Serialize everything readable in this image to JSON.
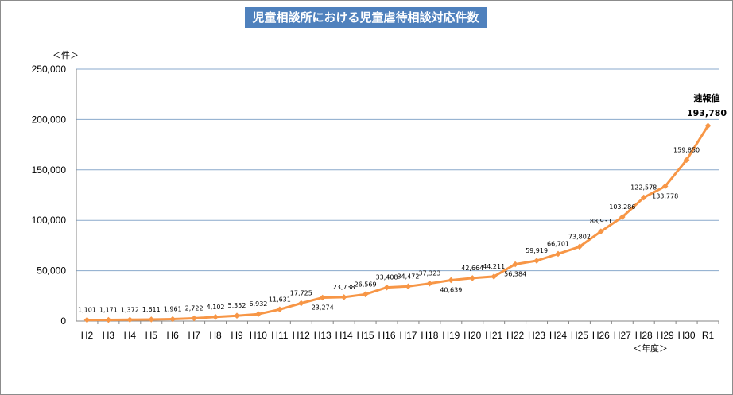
{
  "chart_data": {
    "type": "line",
    "title": "児童相談所における児童虐待相談対応件数",
    "ylabel": "＜件＞",
    "xlabel": "＜年度＞",
    "ylim": [
      0,
      250000
    ],
    "yticks": [
      0,
      50000,
      100000,
      150000,
      200000,
      250000
    ],
    "ytick_labels": [
      "0",
      "50,000",
      "100,000",
      "150,000",
      "200,000",
      "250,000"
    ],
    "categories": [
      "H2",
      "H3",
      "H4",
      "H5",
      "H6",
      "H7",
      "H8",
      "H9",
      "H10",
      "H11",
      "H12",
      "H13",
      "H14",
      "H15",
      "H16",
      "H17",
      "H18",
      "H19",
      "H20",
      "H21",
      "H22",
      "H23",
      "H24",
      "H25",
      "H26",
      "H27",
      "H28",
      "H29",
      "H30",
      "R1"
    ],
    "series": [
      {
        "name": "児童虐待相談対応件数",
        "color": "#f79646",
        "values": [
          1101,
          1171,
          1372,
          1611,
          1961,
          2722,
          4102,
          5352,
          6932,
          11631,
          17725,
          23274,
          23738,
          26569,
          33408,
          34472,
          37323,
          40639,
          42664,
          44211,
          56384,
          59919,
          66701,
          73802,
          88931,
          103286,
          122578,
          133778,
          159850,
          193780
        ]
      }
    ],
    "data_labels": [
      "1,101",
      "1,171",
      "1,372",
      "1,611",
      "1,961",
      "2,722",
      "4,102",
      "5,352",
      "6,932",
      "11,631",
      "17,725",
      "23,274",
      "23,738",
      "26,569",
      "33,408",
      "34,472",
      "37,323",
      "40,639",
      "42,664",
      "44,211",
      "56,384",
      "59,919",
      "66,701",
      "73,802",
      "88,931",
      "103,286",
      "122,578",
      "133,778",
      "159,850",
      "193,780"
    ],
    "label_below": [
      11,
      17,
      20,
      27
    ],
    "annotation": {
      "text": "速報値",
      "value_label": "193,780"
    },
    "grid": true
  }
}
